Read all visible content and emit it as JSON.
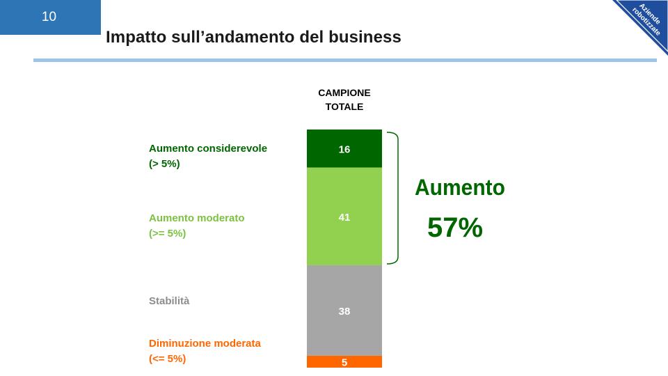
{
  "slide": {
    "number": "10",
    "title": "Impatto sull’andamento del business",
    "corner_tag": [
      "Aziende",
      "robotizzate"
    ]
  },
  "chart_data": {
    "type": "bar",
    "stacked": true,
    "column_label": [
      "CAMPIONE",
      "TOTALE"
    ],
    "categories": [
      {
        "name": [
          "Aumento considerevole",
          "(> 5%)"
        ],
        "value": 16,
        "color": "#006600"
      },
      {
        "name": [
          "Aumento moderato",
          "(>= 5%)"
        ],
        "value": 41,
        "color": "#92d050"
      },
      {
        "name": [
          "Stabilità"
        ],
        "value": 38,
        "color": "#a6a6a6"
      },
      {
        "name": [
          "Diminuzione moderata",
          "(<= 5%)"
        ],
        "value": 5,
        "color": "#ff6600"
      }
    ],
    "label_colors": [
      "#006600",
      "#7cc142",
      "#8c8c8c",
      "#ff6600"
    ],
    "annotation": {
      "label": "Aumento",
      "value": "57%",
      "color": "#006600"
    }
  }
}
